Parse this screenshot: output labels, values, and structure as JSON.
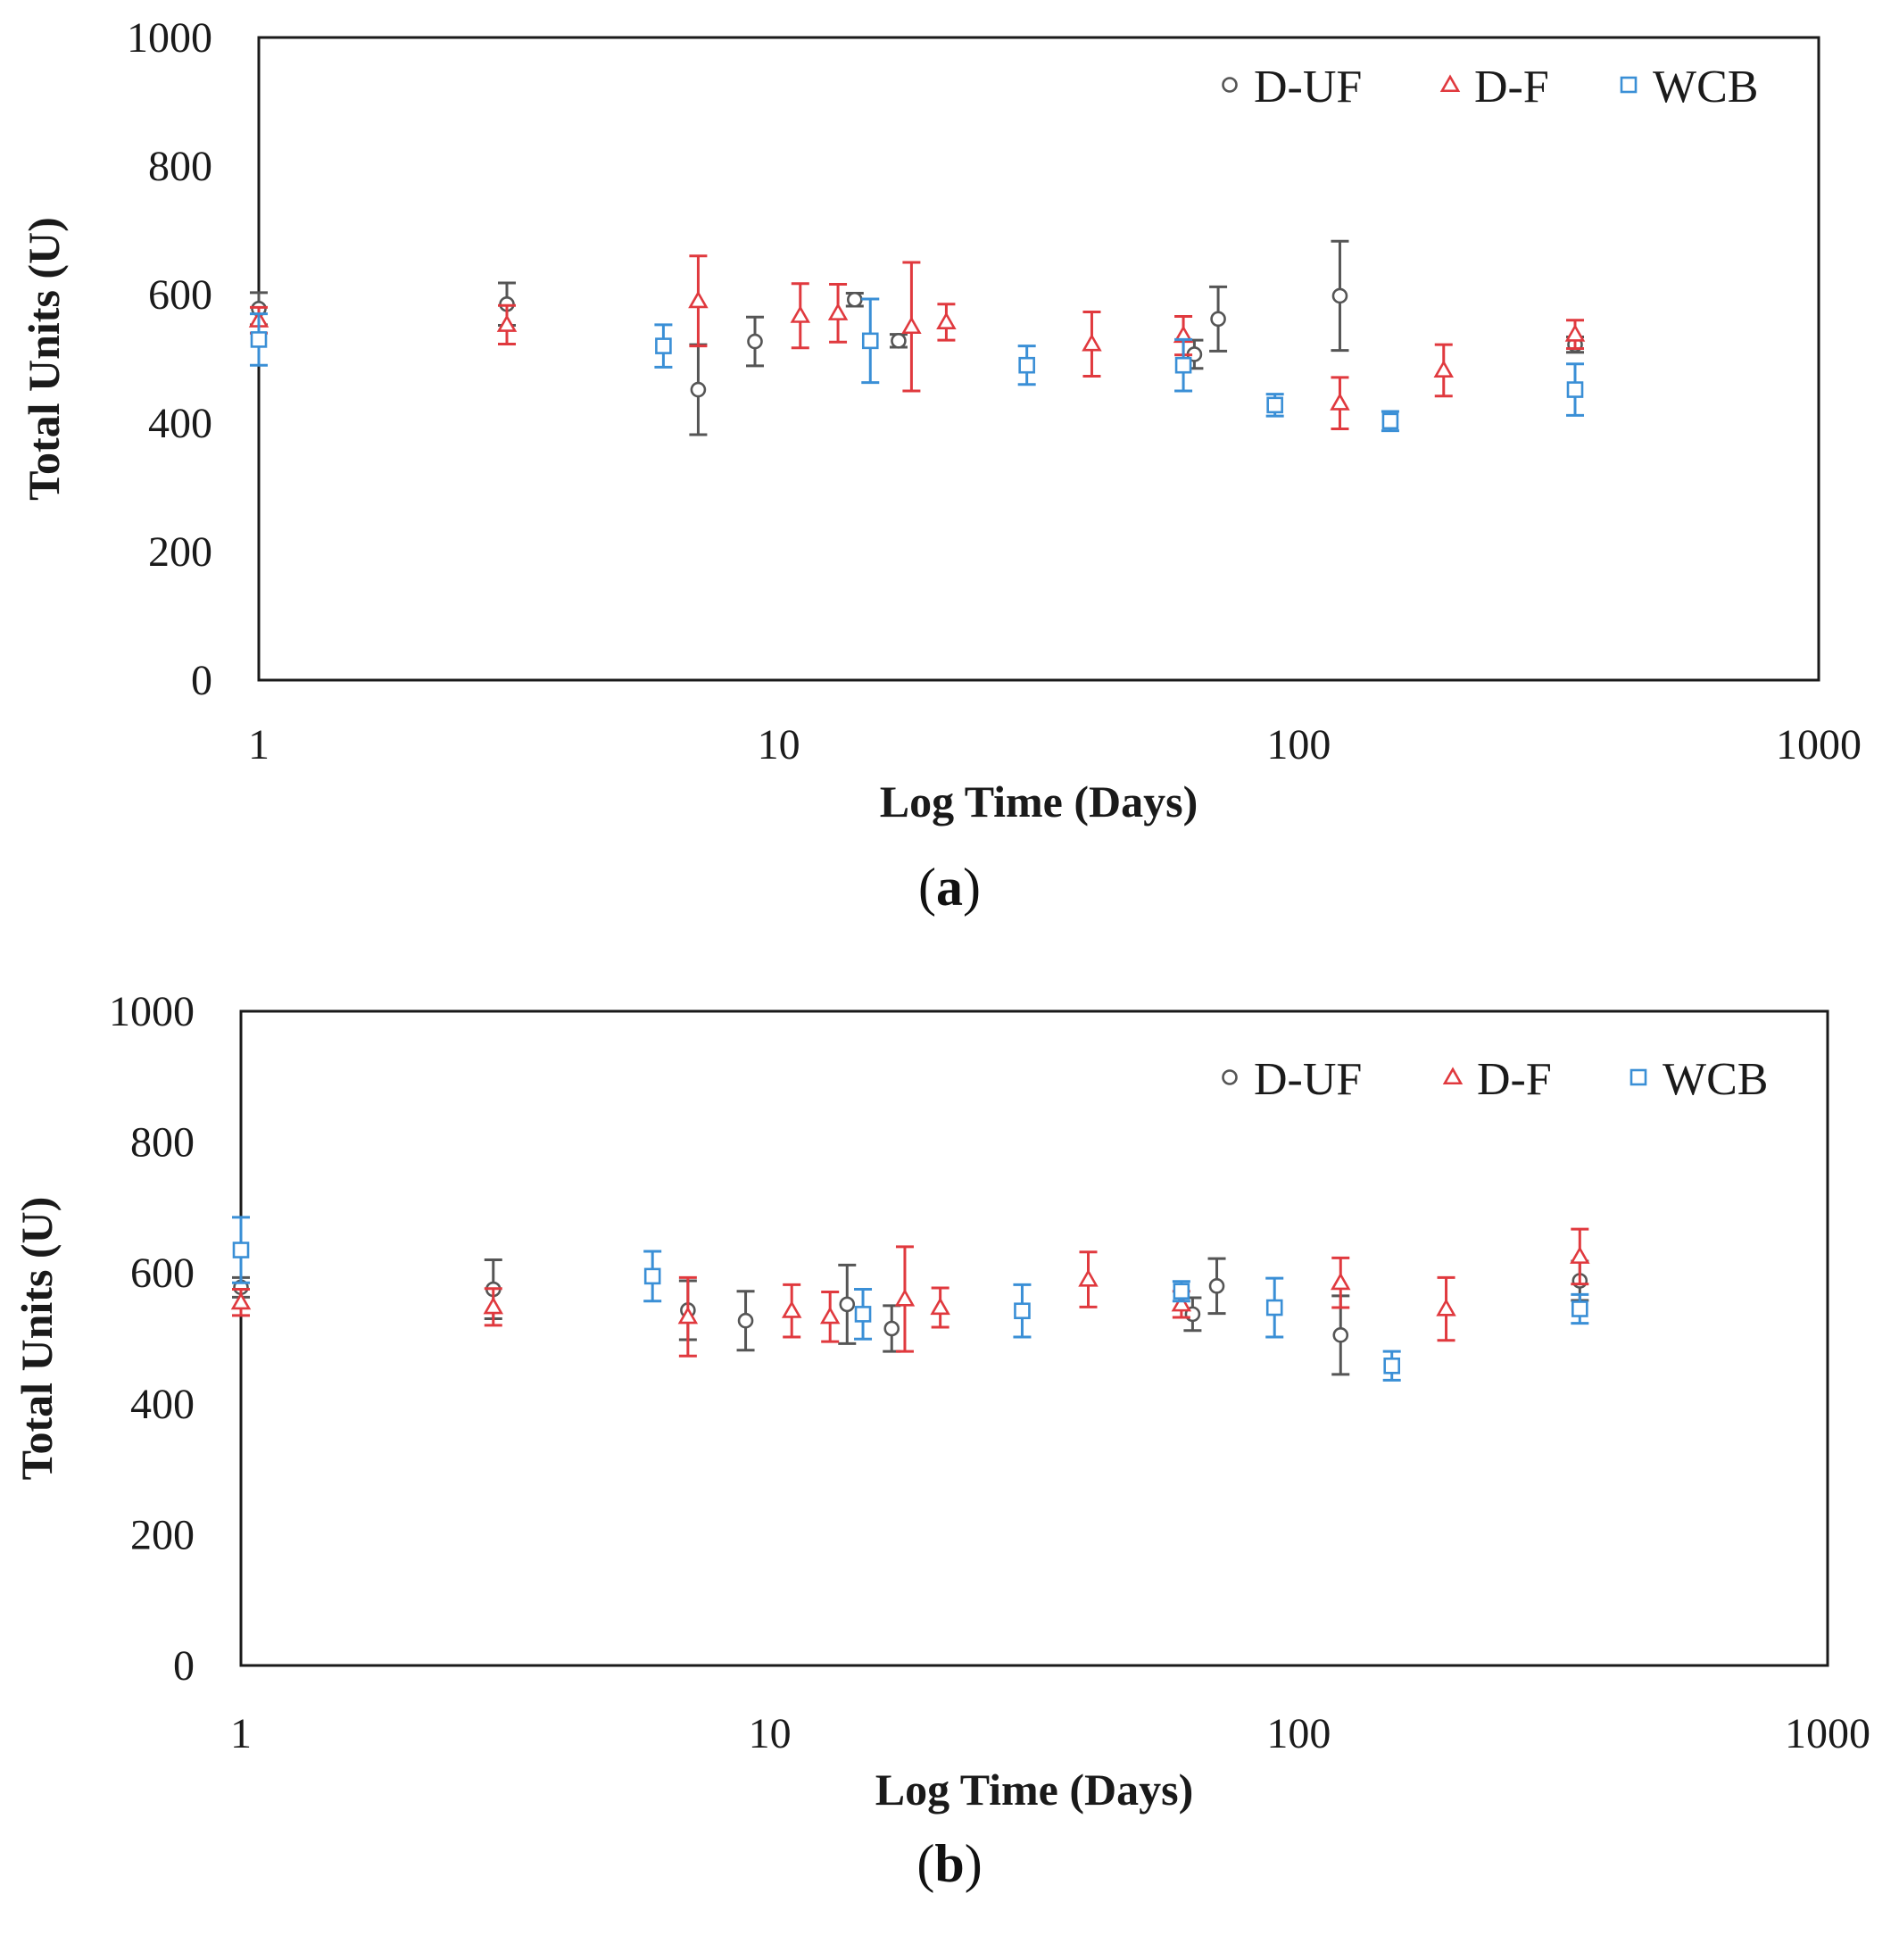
{
  "colors": {
    "D-UF": "#555555",
    "D-F": "#e0393e",
    "WCB": "#3a8fd6",
    "axis": "#1a1a1a"
  },
  "chart_data": [
    {
      "type": "scatter",
      "panel_label": "a",
      "xlabel": "Log Time (Days)",
      "ylabel": "Total Units (U)",
      "xscale": "log",
      "xlim": [
        1,
        1000
      ],
      "ylim": [
        0,
        1000
      ],
      "xticks": [
        1,
        10,
        100,
        1000
      ],
      "xtick_labels": [
        "1",
        "10",
        "100",
        "1000"
      ],
      "yticks": [
        0,
        200,
        400,
        600,
        800,
        1000
      ],
      "ytick_labels": [
        "0",
        "200",
        "400",
        "600",
        "800",
        "1000"
      ],
      "grid": false,
      "legend_position": "top-right",
      "series": [
        {
          "name": "D-UF",
          "marker": "circle",
          "points": [
            {
              "x": 1,
              "y": 578,
              "err": 25
            },
            {
              "x": 3,
              "y": 585,
              "err": 33
            },
            {
              "x": 7,
              "y": 452,
              "err": 70
            },
            {
              "x": 9,
              "y": 527,
              "err": 38
            },
            {
              "x": 14,
              "y": 592,
              "err": 10
            },
            {
              "x": 17,
              "y": 528,
              "err": 10
            },
            {
              "x": 63,
              "y": 507,
              "err": 22
            },
            {
              "x": 70,
              "y": 562,
              "err": 50
            },
            {
              "x": 120,
              "y": 598,
              "err": 85
            },
            {
              "x": 340,
              "y": 522,
              "err": 12
            }
          ]
        },
        {
          "name": "D-F",
          "marker": "triangle",
          "points": [
            {
              "x": 1,
              "y": 560,
              "err": 20
            },
            {
              "x": 3,
              "y": 553,
              "err": 30
            },
            {
              "x": 7,
              "y": 590,
              "err": 70
            },
            {
              "x": 11,
              "y": 567,
              "err": 50
            },
            {
              "x": 13,
              "y": 571,
              "err": 45
            },
            {
              "x": 18,
              "y": 550,
              "err": 100
            },
            {
              "x": 21,
              "y": 557,
              "err": 28
            },
            {
              "x": 40,
              "y": 523,
              "err": 50
            },
            {
              "x": 60,
              "y": 536,
              "err": 30
            },
            {
              "x": 120,
              "y": 431,
              "err": 40
            },
            {
              "x": 190,
              "y": 482,
              "err": 40
            },
            {
              "x": 340,
              "y": 538,
              "err": 22
            }
          ]
        },
        {
          "name": "WCB",
          "marker": "square",
          "points": [
            {
              "x": 1,
              "y": 530,
              "err": 40
            },
            {
              "x": 6,
              "y": 520,
              "err": 33
            },
            {
              "x": 15,
              "y": 528,
              "err": 65
            },
            {
              "x": 30,
              "y": 490,
              "err": 30
            },
            {
              "x": 60,
              "y": 490,
              "err": 40
            },
            {
              "x": 90,
              "y": 428,
              "err": 17
            },
            {
              "x": 150,
              "y": 403,
              "err": 15
            },
            {
              "x": 340,
              "y": 452,
              "err": 40
            }
          ]
        }
      ]
    },
    {
      "type": "scatter",
      "panel_label": "b",
      "xlabel": "Log Time (Days)",
      "ylabel": "Total Units (U)",
      "xscale": "log",
      "xlim": [
        1,
        1000
      ],
      "ylim": [
        0,
        1000
      ],
      "xticks": [
        1,
        10,
        100,
        1000
      ],
      "xtick_labels": [
        "1",
        "10",
        "100",
        "1000"
      ],
      "yticks": [
        0,
        200,
        400,
        600,
        800,
        1000
      ],
      "ytick_labels": [
        "0",
        "200",
        "400",
        "600",
        "800",
        "1000"
      ],
      "grid": false,
      "legend_position": "top-right",
      "series": [
        {
          "name": "D-UF",
          "marker": "circle",
          "points": [
            {
              "x": 1,
              "y": 578,
              "err": 15
            },
            {
              "x": 3,
              "y": 575,
              "err": 45
            },
            {
              "x": 7,
              "y": 543,
              "err": 45
            },
            {
              "x": 9,
              "y": 527,
              "err": 45
            },
            {
              "x": 14,
              "y": 552,
              "err": 60
            },
            {
              "x": 17,
              "y": 515,
              "err": 35
            },
            {
              "x": 63,
              "y": 537,
              "err": 25
            },
            {
              "x": 70,
              "y": 580,
              "err": 42
            },
            {
              "x": 120,
              "y": 505,
              "err": 60
            },
            {
              "x": 340,
              "y": 588,
              "err": 30
            }
          ]
        },
        {
          "name": "D-F",
          "marker": "triangle",
          "points": [
            {
              "x": 1,
              "y": 555,
              "err": 20
            },
            {
              "x": 3,
              "y": 548,
              "err": 28
            },
            {
              "x": 7,
              "y": 533,
              "err": 60
            },
            {
              "x": 11,
              "y": 542,
              "err": 40
            },
            {
              "x": 13,
              "y": 533,
              "err": 38
            },
            {
              "x": 18,
              "y": 560,
              "err": 80
            },
            {
              "x": 21,
              "y": 547,
              "err": 30
            },
            {
              "x": 40,
              "y": 590,
              "err": 42
            },
            {
              "x": 60,
              "y": 552,
              "err": 20
            },
            {
              "x": 120,
              "y": 585,
              "err": 38
            },
            {
              "x": 190,
              "y": 545,
              "err": 48
            },
            {
              "x": 340,
              "y": 625,
              "err": 42
            }
          ]
        },
        {
          "name": "WCB",
          "marker": "square",
          "points": [
            {
              "x": 1,
              "y": 635,
              "err": 50
            },
            {
              "x": 6,
              "y": 595,
              "err": 38
            },
            {
              "x": 15,
              "y": 537,
              "err": 38
            },
            {
              "x": 30,
              "y": 542,
              "err": 40
            },
            {
              "x": 60,
              "y": 572,
              "err": 15
            },
            {
              "x": 90,
              "y": 547,
              "err": 45
            },
            {
              "x": 150,
              "y": 458,
              "err": 22
            },
            {
              "x": 340,
              "y": 545,
              "err": 22
            }
          ]
        }
      ]
    }
  ]
}
